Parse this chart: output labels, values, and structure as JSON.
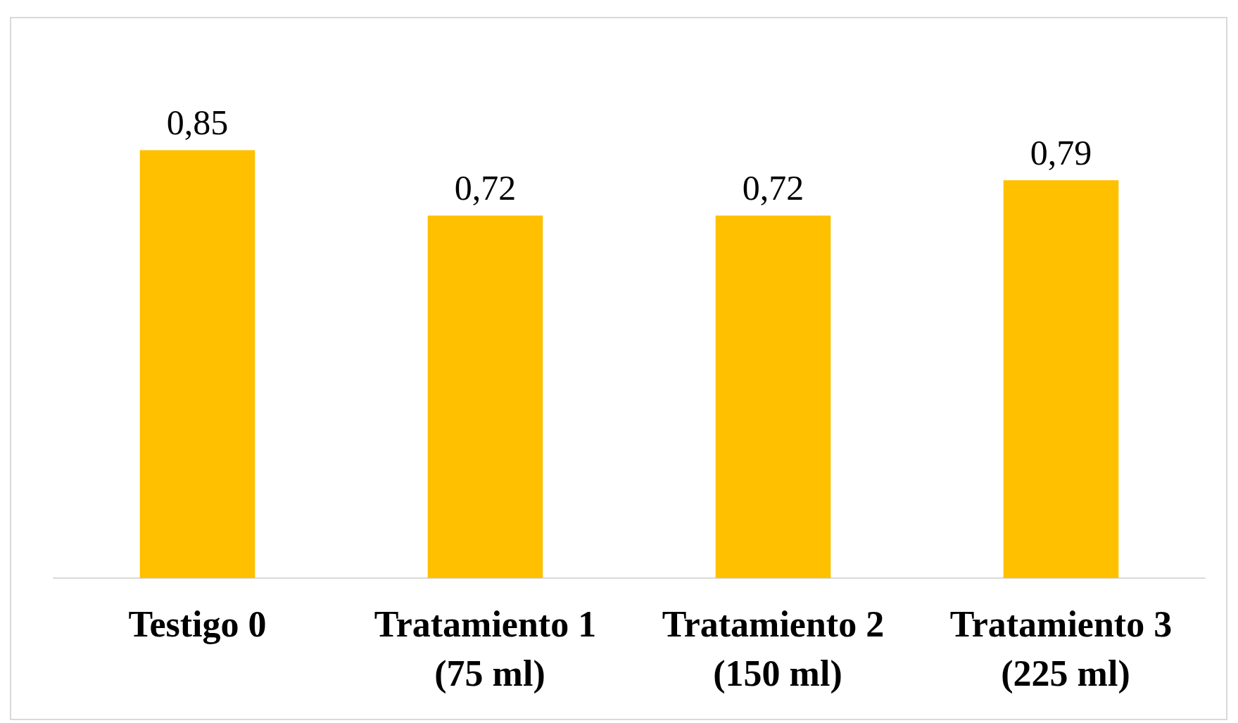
{
  "chart_data": {
    "type": "bar",
    "categories": [
      "Testigo 0",
      "Tratamiento 1 (75 ml)",
      "Tratamiento 2 (150 ml)",
      "Tratamiento 3 (225 ml)"
    ],
    "values": [
      0.85,
      0.72,
      0.72,
      0.79
    ],
    "color": "#ffc000",
    "data_labels": true,
    "value_labels": [
      "0,85",
      "0,72",
      "0,72",
      "0,79"
    ],
    "tick_labels": "x"
  }
}
